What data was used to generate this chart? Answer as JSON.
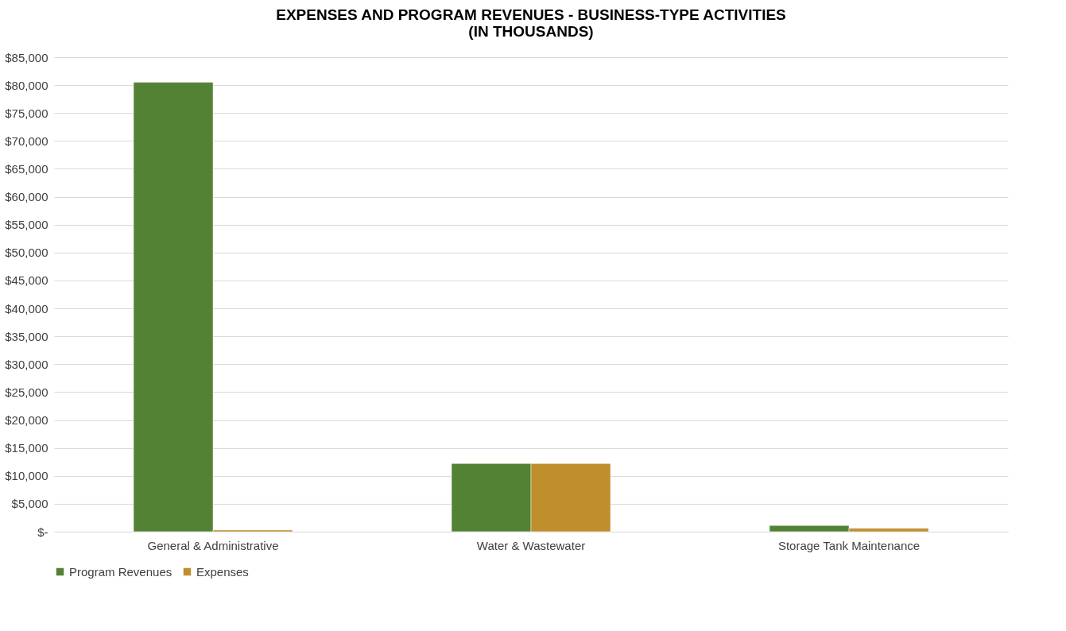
{
  "chart_data": {
    "type": "bar",
    "title": [
      "EXPENSES AND PROGRAM REVENUES - BUSINESS-TYPE ACTIVITIES",
      "(IN THOUSANDS)"
    ],
    "categories": [
      "General & Administrative",
      "Water & Wastewater",
      "Storage Tank Maintenance"
    ],
    "series": [
      {
        "name": "Program Revenues",
        "color": "#548235",
        "values": [
          80500,
          12200,
          1100
        ]
      },
      {
        "name": "Expenses",
        "color": "#bf8f2e",
        "values": [
          300,
          12200,
          600
        ]
      }
    ],
    "ylim": [
      0,
      85000
    ],
    "yticks": [
      {
        "value": 0,
        "label": "$-"
      },
      {
        "value": 5000,
        "label": "$5,000"
      },
      {
        "value": 10000,
        "label": "$10,000"
      },
      {
        "value": 15000,
        "label": "$15,000"
      },
      {
        "value": 20000,
        "label": "$20,000"
      },
      {
        "value": 25000,
        "label": "$25,000"
      },
      {
        "value": 30000,
        "label": "$30,000"
      },
      {
        "value": 35000,
        "label": "$35,000"
      },
      {
        "value": 40000,
        "label": "$40,000"
      },
      {
        "value": 45000,
        "label": "$45,000"
      },
      {
        "value": 50000,
        "label": "$50,000"
      },
      {
        "value": 55000,
        "label": "$55,000"
      },
      {
        "value": 60000,
        "label": "$60,000"
      },
      {
        "value": 65000,
        "label": "$65,000"
      },
      {
        "value": 70000,
        "label": "$70,000"
      },
      {
        "value": 75000,
        "label": "$75,000"
      },
      {
        "value": 80000,
        "label": "$80,000"
      },
      {
        "value": 85000,
        "label": "$85,000"
      }
    ],
    "grid": "y",
    "legend": "bottom"
  }
}
